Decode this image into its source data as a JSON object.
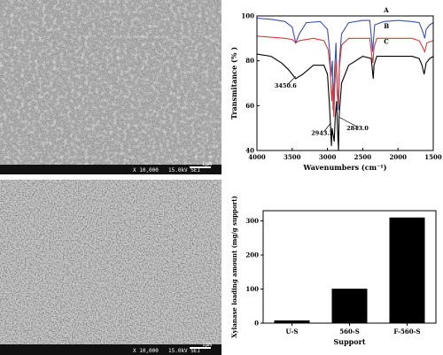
{
  "figure": {
    "sem_top": {
      "magnification": "X 10,000",
      "voltage": "15.0kV SEI",
      "scale_label": "1μm"
    },
    "sem_bottom": {
      "magnification": "X 10,000",
      "voltage": "15.0kV SEI",
      "scale_label": "1μm"
    }
  },
  "chart_data": [
    {
      "type": "line",
      "ylabel": "Transmitance (% )",
      "xlabel": "Wavenumbers (cm⁻¹)",
      "xlim": [
        4000,
        1500
      ],
      "ylim": [
        40,
        100
      ],
      "xticks": [
        4000,
        3500,
        3000,
        2500,
        2000,
        1500
      ],
      "yticks": [
        40,
        60,
        80,
        100
      ],
      "xtick_labels": [
        "4000",
        "3500",
        "3000",
        "2500",
        "2000",
        "1500"
      ],
      "ytick_labels": [
        "40",
        "60",
        "80",
        "100"
      ],
      "series": [
        {
          "name": "A",
          "color": "#3a4fb3",
          "points": [
            [
              4000,
              99
            ],
            [
              3800,
              98.5
            ],
            [
              3600,
              97.5
            ],
            [
              3500,
              95
            ],
            [
              3450,
              88
            ],
            [
              3400,
              92
            ],
            [
              3300,
              97
            ],
            [
              3100,
              97.5
            ],
            [
              3000,
              94
            ],
            [
              2970,
              85
            ],
            [
              2950,
              73
            ],
            [
              2930,
              80
            ],
            [
              2920,
              58
            ],
            [
              2900,
              75
            ],
            [
              2880,
              88
            ],
            [
              2860,
              65
            ],
            [
              2843,
              58
            ],
            [
              2830,
              80
            ],
            [
              2800,
              92
            ],
            [
              2700,
              97
            ],
            [
              2500,
              98
            ],
            [
              2400,
              98
            ],
            [
              2370,
              88
            ],
            [
              2360,
              84
            ],
            [
              2345,
              90
            ],
            [
              2330,
              96
            ],
            [
              2200,
              97.5
            ],
            [
              2000,
              98
            ],
            [
              1800,
              97.5
            ],
            [
              1700,
              97
            ],
            [
              1650,
              93
            ],
            [
              1620,
              90
            ],
            [
              1600,
              94
            ],
            [
              1550,
              96
            ],
            [
              1500,
              97
            ]
          ]
        },
        {
          "name": "B",
          "color": "#d83a3a",
          "points": [
            [
              4000,
              91
            ],
            [
              3800,
              90.5
            ],
            [
              3600,
              90
            ],
            [
              3500,
              89.5
            ],
            [
              3450,
              88
            ],
            [
              3400,
              89
            ],
            [
              3200,
              90
            ],
            [
              3050,
              89
            ],
            [
              2990,
              85
            ],
            [
              2960,
              76
            ],
            [
              2940,
              62
            ],
            [
              2925,
              70
            ],
            [
              2910,
              55
            ],
            [
              2895,
              70
            ],
            [
              2875,
              80
            ],
            [
              2860,
              68
            ],
            [
              2845,
              60
            ],
            [
              2830,
              77
            ],
            [
              2800,
              87
            ],
            [
              2700,
              90
            ],
            [
              2400,
              90
            ],
            [
              2370,
              82
            ],
            [
              2355,
              79
            ],
            [
              2340,
              86
            ],
            [
              2300,
              90
            ],
            [
              2000,
              90
            ],
            [
              1800,
              90
            ],
            [
              1700,
              89
            ],
            [
              1650,
              86
            ],
            [
              1620,
              84
            ],
            [
              1590,
              88
            ],
            [
              1500,
              89
            ]
          ]
        },
        {
          "name": "C",
          "color": "#000000",
          "points": [
            [
              4000,
              83
            ],
            [
              3800,
              82
            ],
            [
              3650,
              79
            ],
            [
              3550,
              76
            ],
            [
              3450.6,
              72
            ],
            [
              3350,
              74
            ],
            [
              3200,
              78
            ],
            [
              3050,
              78
            ],
            [
              3000,
              74
            ],
            [
              2975,
              62
            ],
            [
              2960,
              53
            ],
            [
              2950,
              46
            ],
            [
              2943.3,
              42
            ],
            [
              2935,
              50
            ],
            [
              2920,
              47
            ],
            [
              2905,
              44
            ],
            [
              2890,
              55
            ],
            [
              2870,
              62
            ],
            [
              2858,
              50
            ],
            [
              2850,
              45
            ],
            [
              2843,
              40
            ],
            [
              2835,
              55
            ],
            [
              2800,
              70
            ],
            [
              2700,
              78
            ],
            [
              2500,
              82
            ],
            [
              2380,
              81
            ],
            [
              2360,
              75
            ],
            [
              2350,
              72
            ],
            [
              2340,
              78
            ],
            [
              2300,
              82
            ],
            [
              2000,
              82
            ],
            [
              1800,
              82
            ],
            [
              1700,
              81
            ],
            [
              1660,
              78
            ],
            [
              1630,
              74
            ],
            [
              1600,
              79
            ],
            [
              1550,
              81
            ],
            [
              1500,
              82
            ]
          ]
        }
      ],
      "annotations": [
        {
          "text": "3450.6",
          "x": 3450.6
        },
        {
          "text": "2943.3",
          "x": 2943.3
        },
        {
          "text": "2843.0",
          "x": 2843.0
        }
      ]
    },
    {
      "type": "bar",
      "xlabel": "Support",
      "ylabel": "Xylanase loading amount (mg/g support)",
      "categories": [
        "U-S",
        "560-S",
        "F-560-S"
      ],
      "values": [
        8,
        101,
        310
      ],
      "ylim": [
        0,
        330
      ],
      "yticks": [
        0,
        100,
        200,
        300
      ],
      "ytick_labels": [
        "0",
        "100",
        "200",
        "300"
      ],
      "color": "#000000"
    }
  ]
}
